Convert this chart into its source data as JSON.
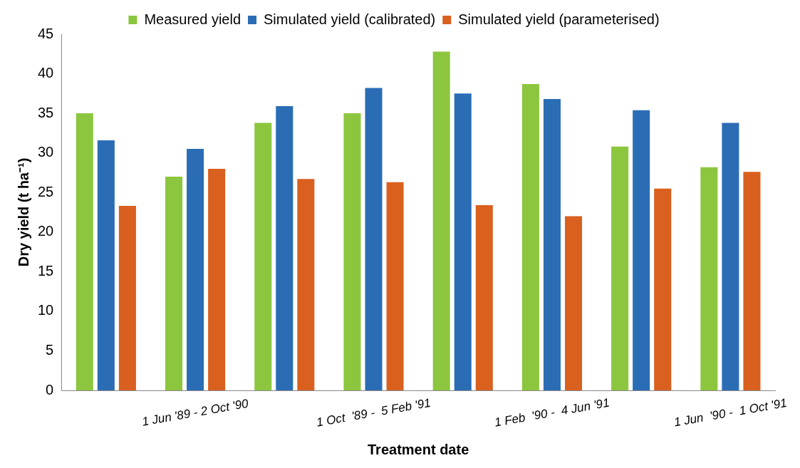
{
  "chart_data": {
    "type": "bar",
    "xlabel": "Treatment date",
    "ylabel": "Dry yield (t ha⁻¹)",
    "categories": [
      null,
      "1 Jun '89 - 2 Oct '90",
      null,
      "1 Oct  '89 -  5 Feb '91",
      null,
      "1 Feb  '90 -  4 Jun '91",
      null,
      "1 Jun  '90 -  1 Oct '91"
    ],
    "series": [
      {
        "name": "Measured yield",
        "color": "#8cc63e",
        "values": [
          35,
          27,
          33.8,
          35,
          42.8,
          38.7,
          30.8,
          28.2
        ]
      },
      {
        "name": "Simulated yield (calibrated)",
        "color": "#2a6db5",
        "values": [
          31.6,
          30.5,
          35.9,
          38.2,
          37.5,
          36.8,
          35.4,
          33.8
        ]
      },
      {
        "name": "Simulated yield (parameterised)",
        "color": "#d9601f",
        "values": [
          23.3,
          28,
          26.7,
          26.3,
          23.4,
          22,
          25.5,
          27.6
        ]
      }
    ],
    "ylim": [
      0,
      45
    ],
    "yticks": [
      0,
      5,
      10,
      15,
      20,
      25,
      30,
      35,
      40,
      45
    ],
    "grid": false,
    "legend": "top"
  }
}
